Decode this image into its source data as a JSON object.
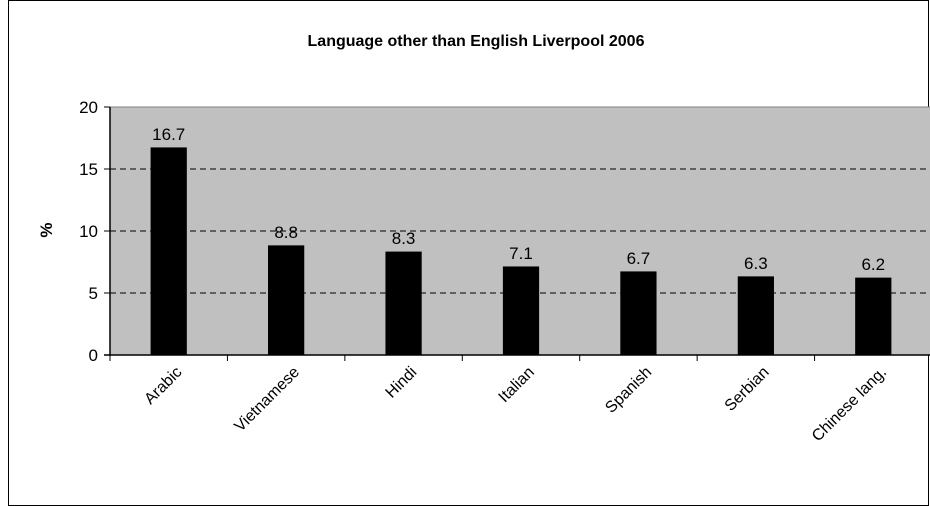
{
  "chart_data": {
    "type": "bar",
    "title": "Language other than English  Liverpool 2006",
    "xlabel": "",
    "ylabel": "%",
    "categories": [
      "Arabic",
      "Vietnamese",
      "Hindi",
      "Italian",
      "Spanish",
      "Serbian",
      "Chinese lang."
    ],
    "values": [
      16.7,
      8.8,
      8.3,
      7.1,
      6.7,
      6.3,
      6.2
    ],
    "data_labels": [
      "16.7",
      "8.8",
      "8.3",
      "7.1",
      "6.7",
      "6.3",
      "6.2"
    ],
    "ylim": [
      0,
      20
    ],
    "yticks": [
      0,
      5,
      10,
      15,
      20
    ],
    "grid": true,
    "grid_style": "dashed",
    "legend": "none",
    "plot_background": "#c0c0c0",
    "bar_color": "#000000"
  }
}
